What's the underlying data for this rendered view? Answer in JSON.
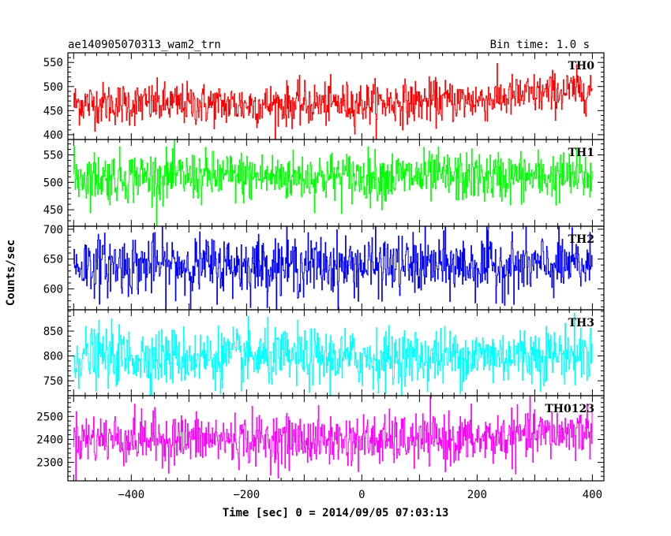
{
  "header": {
    "left": "ae140905070313_wam2_trn",
    "right": "Bin time: 1.0 s"
  },
  "chart_data": {
    "type": "line",
    "title": "ae140905070313_wam2_trn",
    "subtitle": "Bin time: 1.0 s",
    "xlabel": "Time [sec] 0 = 2014/09/05 07:03:13",
    "ylabel": "Counts/sec",
    "xlim": [
      -510,
      420
    ],
    "x_data_range": [
      -500,
      400
    ],
    "bin_time_s": 1.0,
    "xticks": [
      -400,
      -200,
      0,
      200,
      400
    ],
    "xtick_labels": [
      "−400",
      "−200",
      "0",
      "200",
      "400"
    ],
    "grid": false,
    "panels": [
      {
        "name": "TH0",
        "color": "#ff0000",
        "ylim": [
          390,
          570
        ],
        "yticks": [
          400,
          450,
          500,
          550
        ],
        "ytick_labels": [
          "400",
          "450",
          "500",
          "550"
        ],
        "trend": [
          {
            "x": -500,
            "y": 465
          },
          {
            "x": -200,
            "y": 462
          },
          {
            "x": 0,
            "y": 465
          },
          {
            "x": 200,
            "y": 472
          },
          {
            "x": 400,
            "y": 495
          }
        ],
        "noise_sd": 22
      },
      {
        "name": "TH1",
        "color": "#00ff00",
        "ylim": [
          420,
          578
        ],
        "yticks": [
          450,
          500,
          550
        ],
        "ytick_labels": [
          "450",
          "500",
          "550"
        ],
        "trend": [
          {
            "x": -500,
            "y": 510
          },
          {
            "x": 400,
            "y": 510
          }
        ],
        "noise_sd": 23
      },
      {
        "name": "TH2",
        "color": "#0000ff",
        "ylim": [
          565,
          705
        ],
        "yticks": [
          600,
          650,
          700
        ],
        "ytick_labels": [
          "600",
          "650",
          "700"
        ],
        "trend": [
          {
            "x": -500,
            "y": 640
          },
          {
            "x": 400,
            "y": 638
          }
        ],
        "noise_sd": 25
      },
      {
        "name": "TH3",
        "color": "#00ffff",
        "ylim": [
          720,
          893
        ],
        "yticks": [
          750,
          800,
          850
        ],
        "ytick_labels": [
          "750",
          "800",
          "850"
        ],
        "trend": [
          {
            "x": -500,
            "y": 800
          },
          {
            "x": 0,
            "y": 795
          },
          {
            "x": 400,
            "y": 805
          }
        ],
        "noise_sd": 29
      },
      {
        "name": "TH0123",
        "color": "#ff00ff",
        "ylim": [
          2220,
          2590
        ],
        "yticks": [
          2300,
          2400,
          2500
        ],
        "ytick_labels": [
          "2300",
          "2400",
          "2500"
        ],
        "trend": [
          {
            "x": -500,
            "y": 2405
          },
          {
            "x": 0,
            "y": 2395
          },
          {
            "x": 200,
            "y": 2400
          },
          {
            "x": 400,
            "y": 2440
          }
        ],
        "noise_sd": 55
      }
    ]
  }
}
